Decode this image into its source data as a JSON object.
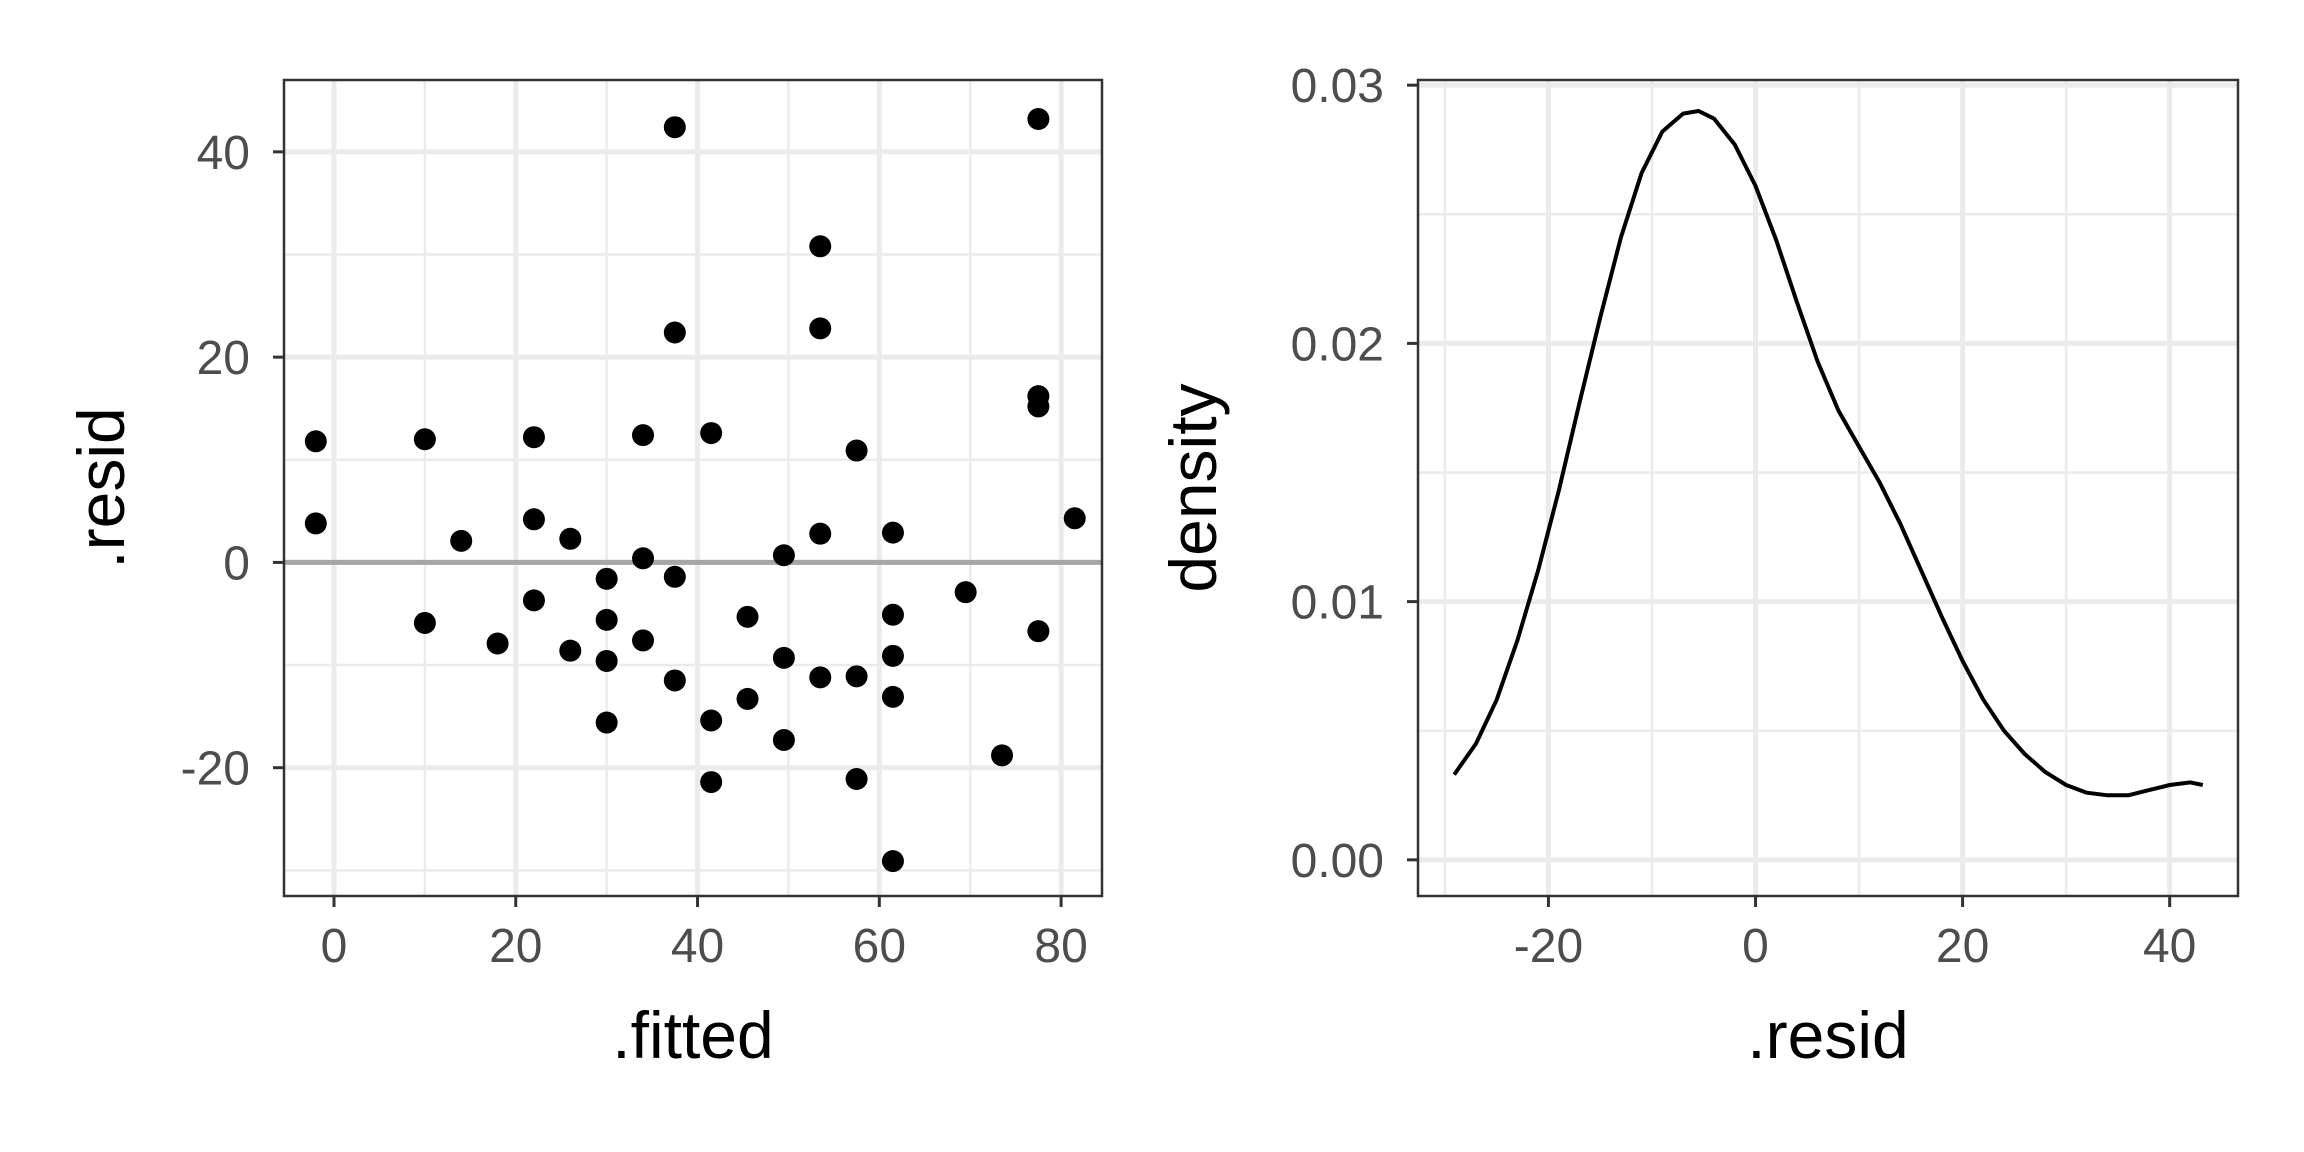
{
  "chart_data": [
    {
      "type": "scatter",
      "xlabel": ".fitted",
      "ylabel": ".resid",
      "xlim": [
        -5.5,
        84.5
      ],
      "ylim": [
        -32.5,
        47
      ],
      "x_ticks": [
        0,
        20,
        40,
        60,
        80
      ],
      "x_tick_labels": [
        "0",
        "20",
        "40",
        "60",
        "80"
      ],
      "y_ticks": [
        -20,
        0,
        20,
        40
      ],
      "y_tick_labels": [
        "-20",
        "0",
        "20",
        "40"
      ],
      "grid": true,
      "reference_line": {
        "y": 0,
        "color": "#a6a6a6"
      },
      "point_color": "#000000",
      "points": [
        {
          "x": -2,
          "y": 11.8
        },
        {
          "x": -2,
          "y": 3.8
        },
        {
          "x": 10,
          "y": 12
        },
        {
          "x": 10,
          "y": -5.9
        },
        {
          "x": 14,
          "y": 2.1
        },
        {
          "x": 18,
          "y": -7.9
        },
        {
          "x": 22,
          "y": 12.2
        },
        {
          "x": 22,
          "y": 4.2
        },
        {
          "x": 22,
          "y": -3.7
        },
        {
          "x": 26,
          "y": 2.3
        },
        {
          "x": 26,
          "y": -8.6
        },
        {
          "x": 30,
          "y": -1.6
        },
        {
          "x": 30,
          "y": -5.6
        },
        {
          "x": 30,
          "y": -9.6
        },
        {
          "x": 30,
          "y": -15.6
        },
        {
          "x": 34,
          "y": 12.4
        },
        {
          "x": 34,
          "y": 0.4
        },
        {
          "x": 34,
          "y": -7.6
        },
        {
          "x": 37.5,
          "y": 42.4
        },
        {
          "x": 37.5,
          "y": 22.4
        },
        {
          "x": 37.5,
          "y": -1.4
        },
        {
          "x": 37.5,
          "y": -11.5
        },
        {
          "x": 41.5,
          "y": 12.6
        },
        {
          "x": 41.5,
          "y": -15.4
        },
        {
          "x": 41.5,
          "y": -21.4
        },
        {
          "x": 45.5,
          "y": -5.3
        },
        {
          "x": 45.5,
          "y": -13.3
        },
        {
          "x": 49.5,
          "y": 0.7
        },
        {
          "x": 49.5,
          "y": -9.3
        },
        {
          "x": 49.5,
          "y": -17.3
        },
        {
          "x": 53.5,
          "y": 30.8
        },
        {
          "x": 53.5,
          "y": 22.8
        },
        {
          "x": 53.5,
          "y": 2.8
        },
        {
          "x": 53.5,
          "y": -11.2
        },
        {
          "x": 57.5,
          "y": 10.9
        },
        {
          "x": 57.5,
          "y": -11.1
        },
        {
          "x": 57.5,
          "y": -21.1
        },
        {
          "x": 61.5,
          "y": 2.9
        },
        {
          "x": 61.5,
          "y": -5.1
        },
        {
          "x": 61.5,
          "y": -9.1
        },
        {
          "x": 61.5,
          "y": -13.1
        },
        {
          "x": 61.5,
          "y": -29.1
        },
        {
          "x": 69.5,
          "y": -2.9
        },
        {
          "x": 73.5,
          "y": -18.8
        },
        {
          "x": 77.5,
          "y": 43.2
        },
        {
          "x": 77.5,
          "y": 16.2
        },
        {
          "x": 77.5,
          "y": 15.2
        },
        {
          "x": 77.5,
          "y": -6.7
        },
        {
          "x": 81.5,
          "y": 4.3
        }
      ]
    },
    {
      "type": "line",
      "xlabel": ".resid",
      "ylabel": "density",
      "xlim": [
        -32.6,
        46.6
      ],
      "ylim": [
        -0.0014,
        0.0302
      ],
      "x_ticks": [
        -20,
        0,
        20,
        40
      ],
      "x_tick_labels": [
        "-20",
        "0",
        "20",
        "40"
      ],
      "y_ticks": [
        0,
        0.01,
        0.02,
        0.03
      ],
      "y_tick_labels": [
        "0.00",
        "0.01",
        "0.02",
        "0.03"
      ],
      "grid": true,
      "line_color": "#000000",
      "x": [
        -29.1,
        -27,
        -25,
        -23,
        -21,
        -19,
        -17,
        -15,
        -13,
        -11,
        -9,
        -7,
        -5.5,
        -4,
        -2,
        0,
        2,
        4,
        6,
        8,
        10,
        12,
        14,
        16,
        18,
        20,
        22,
        24,
        26,
        28,
        30,
        32,
        34,
        36,
        38,
        40,
        42,
        43.2
      ],
      "y": [
        0.0033,
        0.0045,
        0.0062,
        0.0085,
        0.0112,
        0.0143,
        0.0177,
        0.021,
        0.0241,
        0.0266,
        0.0282,
        0.0289,
        0.029,
        0.0287,
        0.0277,
        0.0261,
        0.024,
        0.0216,
        0.0193,
        0.0174,
        0.016,
        0.0146,
        0.013,
        0.0112,
        0.0094,
        0.0077,
        0.0062,
        0.005,
        0.0041,
        0.0034,
        0.0029,
        0.0026,
        0.0025,
        0.0025,
        0.0027,
        0.0029,
        0.003,
        0.0029
      ]
    }
  ]
}
